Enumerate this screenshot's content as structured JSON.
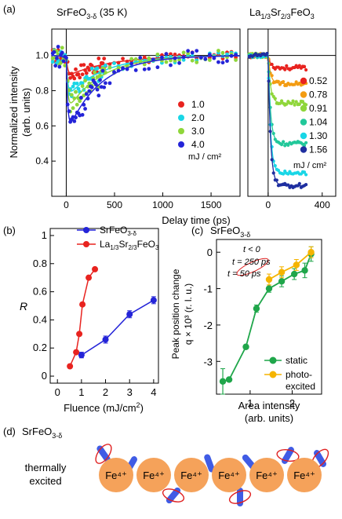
{
  "panel_labels": {
    "a": "(a)",
    "b": "(b)",
    "c": "(c)",
    "d": "(d)"
  },
  "colors": {
    "red": "#e8231f",
    "orange": "#f39c12",
    "green": "#8fd63a",
    "teal": "#22c89a",
    "cyan": "#19d6e6",
    "blue": "#2424d8",
    "darkblue": "#1f2fa0",
    "static_green": "#1fa64a",
    "photo_orange": "#f5b400",
    "fe_ball": "#f5a25a",
    "spin_blue": "#1f3fe0",
    "ring_red": "#e02020"
  },
  "chart_data": [
    {
      "id": "a-left",
      "type": "scatter",
      "title": "SrFeO3-δ (35 K)",
      "title_main": "SrFeO",
      "title_sub": "3-δ",
      "title_tail": " (35 K)",
      "xlabel": "Delay time (ps)",
      "ylabel": "Normalized intensity (arb. units)",
      "ylabel_line1": "Normalized intensity",
      "ylabel_line2": "(arb. units)",
      "xlim": [
        -150,
        1800
      ],
      "ylim": [
        0.2,
        1.15
      ],
      "xticks": [
        0,
        500,
        1000,
        1500
      ],
      "yticks": [
        0.4,
        0.6,
        0.8,
        1.0
      ],
      "ytick_labels": [
        "0.4",
        "0.6",
        "0.8",
        "1.0"
      ],
      "legend_unit": "mJ / cm²",
      "legend_position": "lower-right",
      "series": [
        {
          "name": "1.0",
          "color_key": "red",
          "min": 0.88,
          "tau": 450,
          "scatter": 0.05
        },
        {
          "name": "2.0",
          "color_key": "cyan",
          "min": 0.76,
          "tau": 380,
          "scatter": 0.06
        },
        {
          "name": "3.0",
          "color_key": "green",
          "min": 0.68,
          "tau": 360,
          "scatter": 0.07
        },
        {
          "name": "4.0",
          "color_key": "blue",
          "min": 0.55,
          "tau": 340,
          "scatter": 0.08
        }
      ]
    },
    {
      "id": "a-right",
      "type": "scatter",
      "title_main": "La",
      "title_parts": [
        {
          "t": "La",
          "sub": false
        },
        {
          "t": "1/3",
          "sub": true
        },
        {
          "t": "Sr",
          "sub": false
        },
        {
          "t": "2/3",
          "sub": true
        },
        {
          "t": "FeO",
          "sub": false
        },
        {
          "t": "3",
          "sub": true
        }
      ],
      "xlim": [
        -150,
        500
      ],
      "ylim": [
        0.2,
        1.15
      ],
      "xticks": [
        0,
        400
      ],
      "legend_unit": "mJ / cm²",
      "legend_position": "right",
      "series": [
        {
          "name": "0.52",
          "color_key": "red",
          "plateau": 0.93
        },
        {
          "name": "0.78",
          "color_key": "orange",
          "plateau": 0.84
        },
        {
          "name": "0.91",
          "color_key": "green",
          "plateau": 0.73
        },
        {
          "name": "1.04",
          "color_key": "teal",
          "plateau": 0.5
        },
        {
          "name": "1.30",
          "color_key": "cyan",
          "plateau": 0.33
        },
        {
          "name": "1.56",
          "color_key": "darkblue",
          "plateau": 0.26
        }
      ]
    },
    {
      "id": "b",
      "type": "line",
      "xlabel": "Fluence (mJ/cm²)",
      "xlabel_main": "Fluence (mJ/cm",
      "xlabel_sup": "2",
      "xlabel_tail": ")",
      "ylabel": "R",
      "xlim": [
        -0.3,
        4.2
      ],
      "ylim": [
        -0.05,
        1.05
      ],
      "xticks": [
        0,
        1,
        2,
        3,
        4
      ],
      "yticks": [
        0,
        0.2,
        0.4,
        0.6,
        0.8,
        1
      ],
      "ytick_labels": [
        "0",
        "0.2",
        "0.4",
        "0.6",
        "0.8",
        "1"
      ],
      "legend_position": "top-left",
      "series": [
        {
          "name": "SrFeO3-δ",
          "name_main": "SrFeO",
          "name_sub": "3-δ",
          "color_key": "blue",
          "x": [
            1.0,
            2.0,
            3.0,
            4.0
          ],
          "y": [
            0.15,
            0.26,
            0.44,
            0.54
          ],
          "err": [
            0.02,
            0.025,
            0.025,
            0.025
          ]
        },
        {
          "name": "La1/3Sr2/3FeO3",
          "color_key": "red",
          "x": [
            0.52,
            0.78,
            0.91,
            1.04,
            1.3,
            1.56
          ],
          "y": [
            0.07,
            0.17,
            0.3,
            0.51,
            0.7,
            0.76
          ]
        }
      ]
    },
    {
      "id": "c",
      "type": "line",
      "title_main": "SrFeO",
      "title_sub": "3-δ",
      "xlabel_line1": "Area intensity",
      "xlabel_line2": "(arb. units)",
      "ylabel_line1": "Peak position change",
      "ylabel_line2": "q × 10³  (r. l. u.)",
      "xlim": [
        0.2,
        2.7
      ],
      "ylim": [
        -3.9,
        0.35
      ],
      "xticks": [
        1,
        2
      ],
      "yticks": [
        -3,
        -2,
        -1,
        0
      ],
      "ytick_labels": [
        "-3",
        "-2",
        "-1",
        "0"
      ],
      "annotations": [
        "t < 0",
        "t = 250 ps",
        "t = 50 ps"
      ],
      "legend_position": "lower-right",
      "series": [
        {
          "name": "static",
          "color_key": "static_green",
          "x": [
            0.35,
            0.5,
            0.9,
            1.15,
            1.45,
            1.75,
            2.05,
            2.3,
            2.45
          ],
          "y": [
            -3.55,
            -3.5,
            -2.6,
            -1.55,
            -1.0,
            -0.8,
            -0.6,
            -0.5,
            -0.05
          ],
          "err": [
            0.35,
            0.05,
            0.05,
            0.1,
            0.1,
            0.15,
            0.15,
            0.2,
            0.2
          ]
        },
        {
          "name": "photo-excited",
          "name_line1": "photo-",
          "name_line2": "excited",
          "color_key": "photo_orange",
          "x": [
            1.45,
            1.75,
            2.1,
            2.45
          ],
          "y": [
            -0.75,
            -0.55,
            -0.35,
            0.0
          ],
          "err": [
            0.15,
            0.15,
            0.15,
            0.15
          ]
        }
      ]
    }
  ],
  "panel_d": {
    "title_main": "SrFeO",
    "title_sub": "3-δ",
    "caption_line1": "thermally",
    "caption_line2": "excited",
    "atoms": [
      "Fe⁴⁺",
      "Fe⁴⁺",
      "Fe⁴⁺",
      "Fe⁴⁺",
      "Fe⁴⁺",
      "Fe⁴⁺"
    ]
  }
}
